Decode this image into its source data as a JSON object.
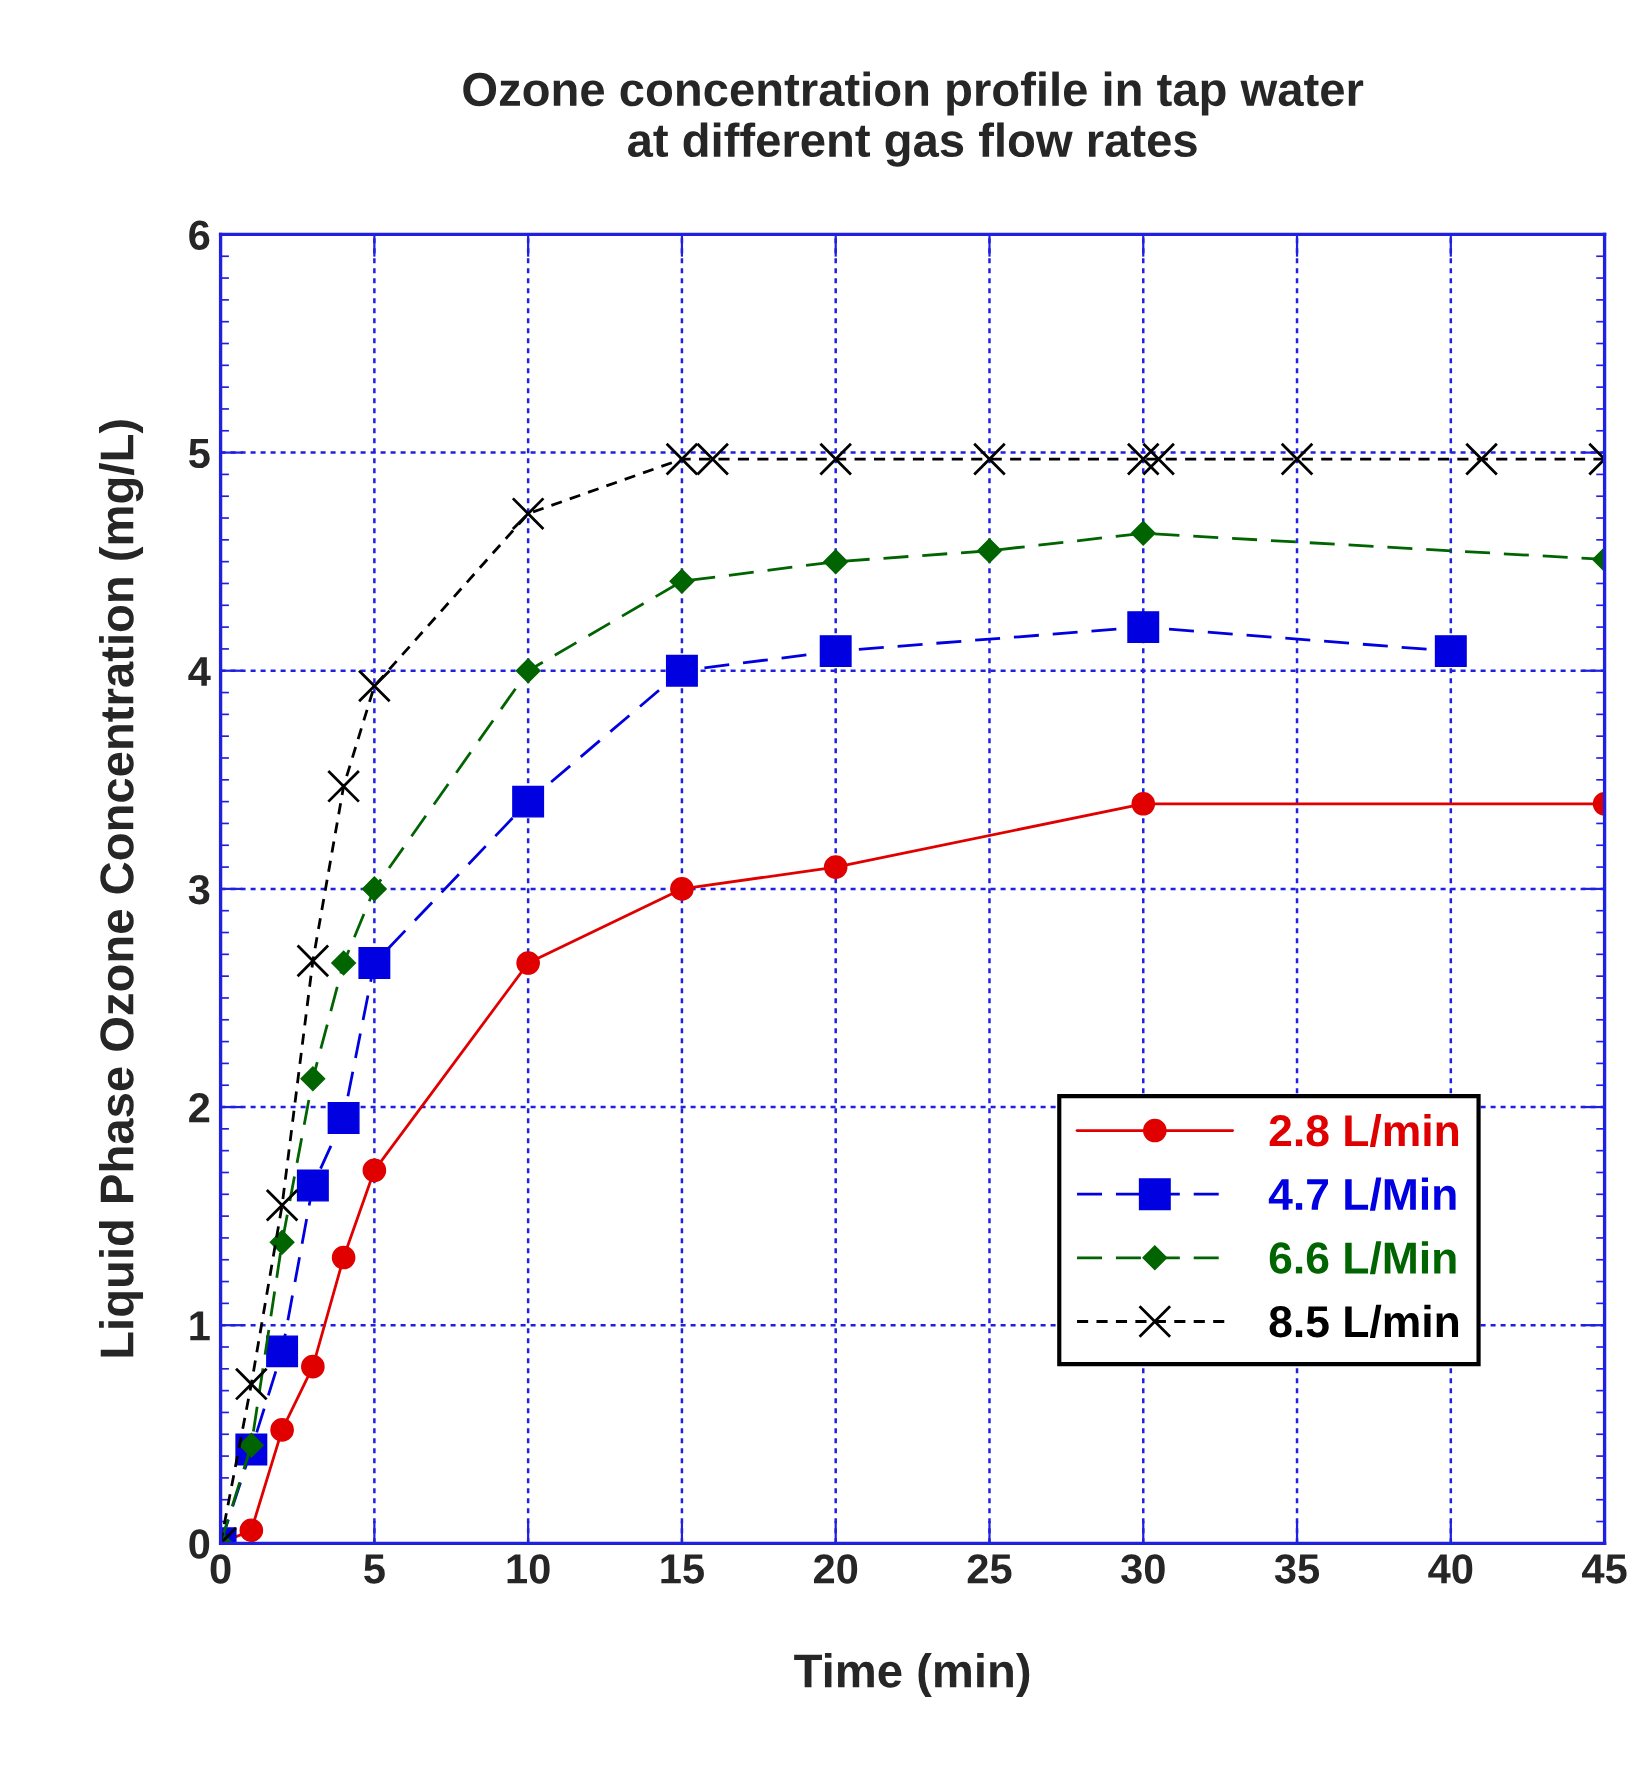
{
  "chart_data": {
    "type": "line",
    "title": "Ozone concentration profile in tap water\nat different gas flow rates",
    "xlabel": "Time (min)",
    "ylabel": "Liquid Phase Ozone Concentration (mg/L)",
    "xlim": [
      0,
      45
    ],
    "ylim": [
      0,
      6
    ],
    "xticks": [
      0,
      5,
      10,
      15,
      20,
      25,
      30,
      35,
      40,
      45
    ],
    "yticks": [
      0,
      1,
      2,
      3,
      4,
      5,
      6
    ],
    "grid": true,
    "legend": "bottom right",
    "series": [
      {
        "name": "2.8 L/min",
        "color": "#e00000",
        "marker": "circle",
        "line_style": "solid",
        "x": [
          0,
          1,
          2,
          3,
          4,
          5,
          10,
          15,
          20,
          30,
          45
        ],
        "values": [
          0,
          0.06,
          0.52,
          0.81,
          1.31,
          1.71,
          2.66,
          3.0,
          3.1,
          3.39,
          3.39
        ]
      },
      {
        "name": "4.7 L/Min",
        "color": "#0000e0",
        "marker": "square",
        "line_style": "dashed",
        "x": [
          0,
          1,
          2,
          3,
          4,
          5,
          10,
          15,
          20,
          30,
          40
        ],
        "values": [
          0,
          0.43,
          0.88,
          1.64,
          1.95,
          2.66,
          3.4,
          4.0,
          4.09,
          4.2,
          4.09
        ]
      },
      {
        "name": "6.6 L/Min",
        "color": "#006400",
        "marker": "diamond",
        "line_style": "dashed",
        "x": [
          0,
          1,
          2,
          3,
          4,
          5,
          10,
          15,
          20,
          25,
          30,
          45
        ],
        "values": [
          0,
          0.45,
          1.38,
          2.13,
          2.66,
          3.0,
          4.0,
          4.41,
          4.5,
          4.55,
          4.63,
          4.51
        ]
      },
      {
        "name": "8.5 L/min",
        "color": "#000000",
        "marker": "cross",
        "line_style": "dotted",
        "x": [
          0,
          1,
          2,
          3,
          4,
          5,
          10,
          15,
          16,
          20,
          25,
          30,
          30.5,
          35,
          41,
          45
        ],
        "values": [
          0,
          0.73,
          1.55,
          2.67,
          3.47,
          3.93,
          4.72,
          4.97,
          4.97,
          4.97,
          4.97,
          4.97,
          4.97,
          4.97,
          4.97,
          4.97
        ]
      }
    ]
  }
}
